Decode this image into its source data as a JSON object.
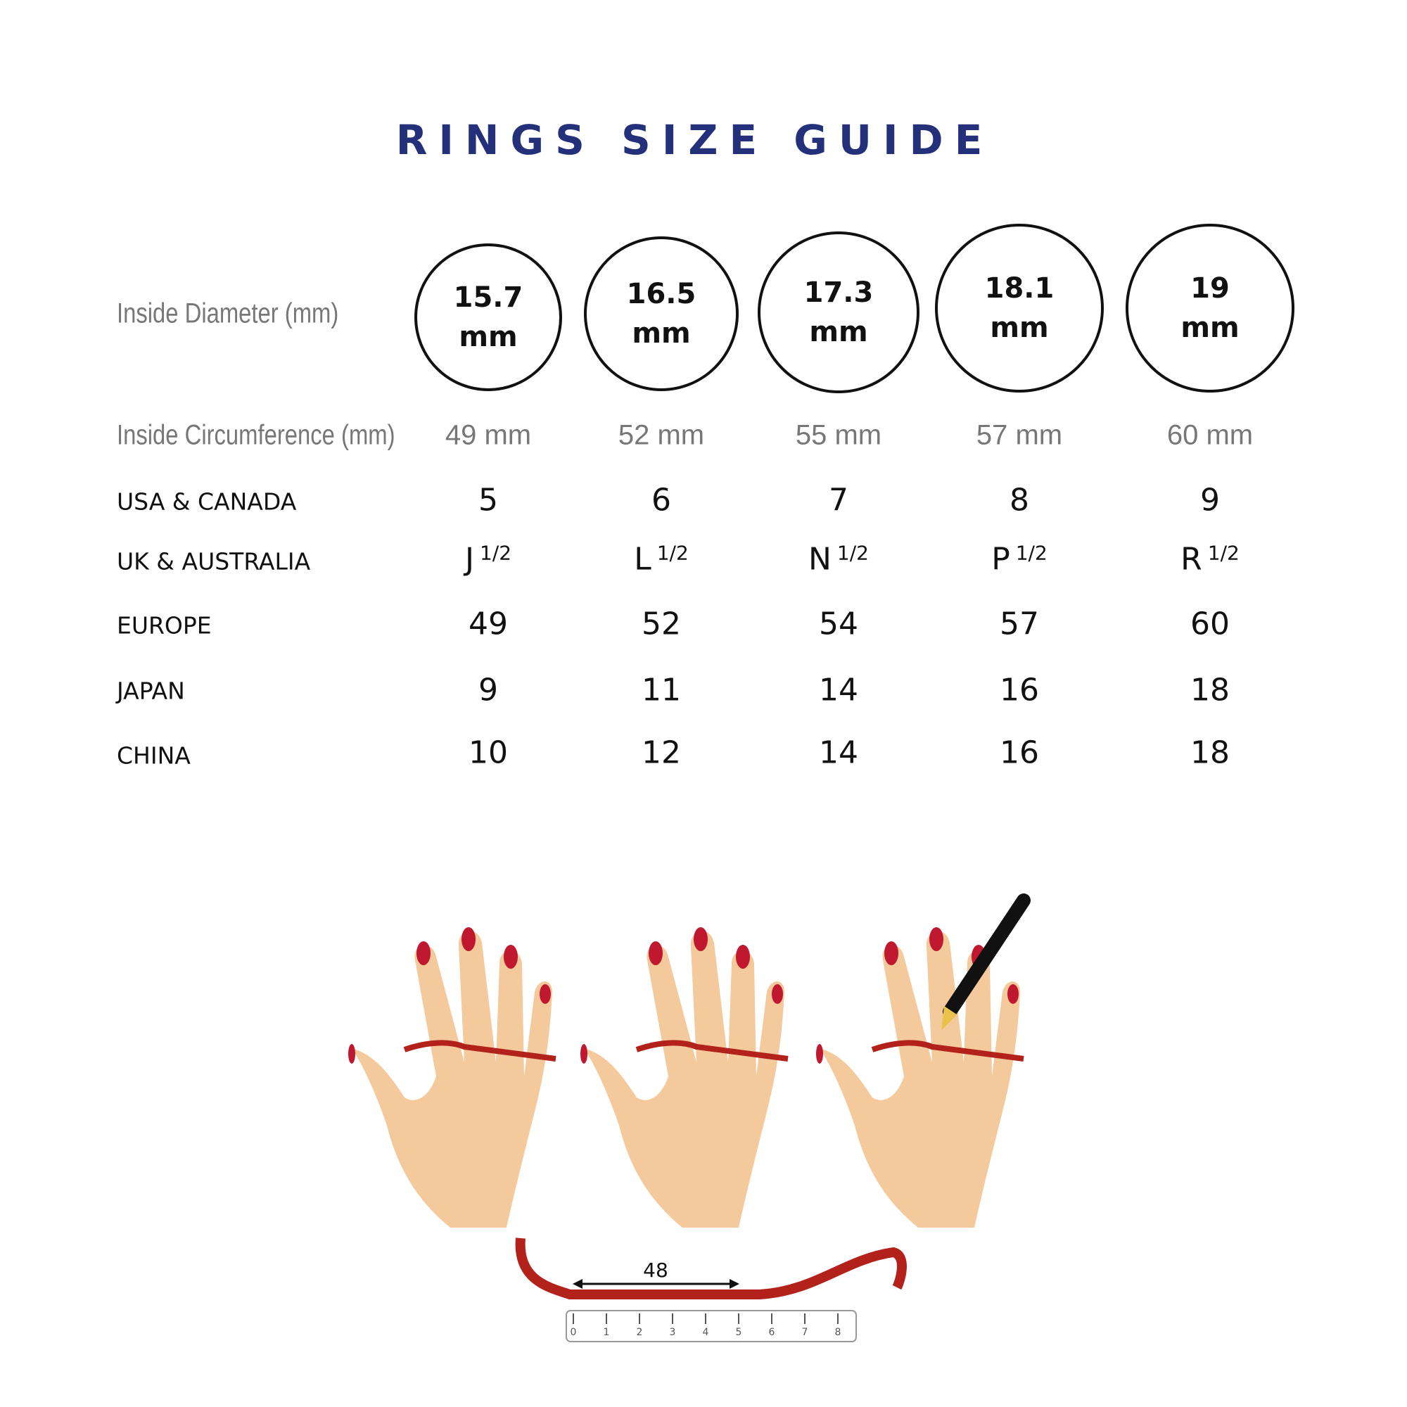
{
  "title": "RINGS SIZE GUIDE",
  "rows": {
    "diameter_label": "Inside Diameter (mm)",
    "circumference_label": "Inside Circumference (mm)",
    "usa_label": "USA & CANADA",
    "uk_label": "UK & AUSTRALIA",
    "europe_label": "EUROPE",
    "japan_label": "JAPAN",
    "china_label": "CHINA"
  },
  "sizes": [
    {
      "diameter": "15.7",
      "unit": "mm",
      "circumference": "49 mm",
      "usa": "5",
      "uk": "J",
      "uk_half": "1/2",
      "europe": "49",
      "japan": "9",
      "china": "10"
    },
    {
      "diameter": "16.5",
      "unit": "mm",
      "circumference": "52 mm",
      "usa": "6",
      "uk": "L",
      "uk_half": "1/2",
      "europe": "52",
      "japan": "11",
      "china": "12"
    },
    {
      "diameter": "17.3",
      "unit": "mm",
      "circumference": "55 mm",
      "usa": "7",
      "uk": "N",
      "uk_half": "1/2",
      "europe": "54",
      "japan": "14",
      "china": "14"
    },
    {
      "diameter": "18.1",
      "unit": "mm",
      "circumference": "57 mm",
      "usa": "8",
      "uk": "P",
      "uk_half": "1/2",
      "europe": "57",
      "japan": "16",
      "china": "16"
    },
    {
      "diameter": "19",
      "unit": "mm",
      "circumference": "60 mm",
      "usa": "9",
      "uk": "R",
      "uk_half": "1/2",
      "europe": "60",
      "japan": "18",
      "china": "18"
    }
  ],
  "illustration": {
    "measure_label": "48",
    "ruler_ticks": [
      "0",
      "1",
      "2",
      "3",
      "4",
      "5",
      "6",
      "7",
      "8"
    ]
  },
  "colors": {
    "title": "#24307a",
    "skin": "#f4c99c",
    "nail": "#c0182f",
    "string": "#b3211b"
  }
}
